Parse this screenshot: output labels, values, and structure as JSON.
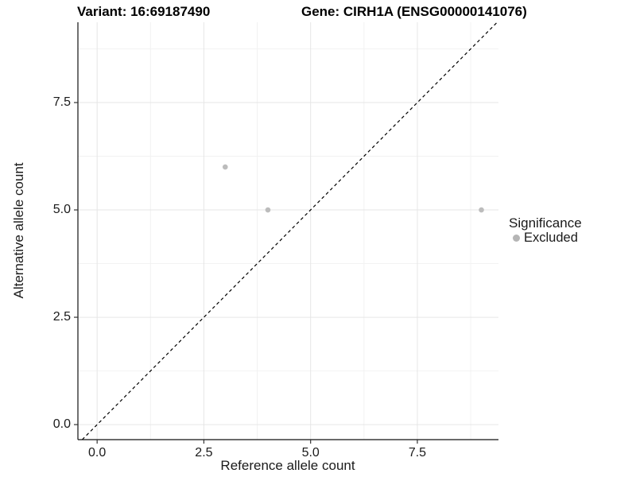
{
  "header": {
    "title_left": "Variant: 16:69187490",
    "title_right": "Gene: CIRH1A (ENSG00000141076)"
  },
  "chart_data": {
    "type": "scatter",
    "title": "Variant: 16:69187490  |  Gene: CIRH1A (ENSG00000141076)",
    "xlabel": "Reference allele count",
    "ylabel": "Alternative allele count",
    "xlim": [
      -0.45,
      9.4
    ],
    "ylim": [
      -0.35,
      9.37
    ],
    "x_ticks": [
      0,
      2.5,
      5,
      7.5
    ],
    "y_ticks": [
      0,
      2.5,
      5,
      7.5
    ],
    "x_tick_labels": [
      "0.0",
      "2.5",
      "5.0",
      "7.5"
    ],
    "y_tick_labels": [
      "0.0",
      "2.5",
      "5.0",
      "7.5"
    ],
    "x_minor_ticks": [
      1.25,
      3.75,
      6.25,
      8.75
    ],
    "y_minor_ticks": [
      1.25,
      3.75,
      6.25,
      8.75
    ],
    "grid": true,
    "identity_line": {
      "slope": 1,
      "intercept": 0,
      "style": "dashed",
      "color": "#000000"
    },
    "series": [
      {
        "name": "Excluded",
        "color": "#bcbcbc",
        "points": [
          {
            "x": 3,
            "y": 6
          },
          {
            "x": 4,
            "y": 5
          },
          {
            "x": 9,
            "y": 5
          }
        ]
      }
    ],
    "legend": {
      "title": "Significance",
      "position": "right",
      "items": [
        {
          "label": "Excluded",
          "color": "#b5b5b5"
        }
      ]
    }
  },
  "colors": {
    "background": "#ffffff",
    "axis_line": "#111111",
    "major_grid": "#e6e6e6",
    "minor_grid": "#f2f2f2",
    "point": "#bcbcbc",
    "text": "#1a1a1a"
  }
}
